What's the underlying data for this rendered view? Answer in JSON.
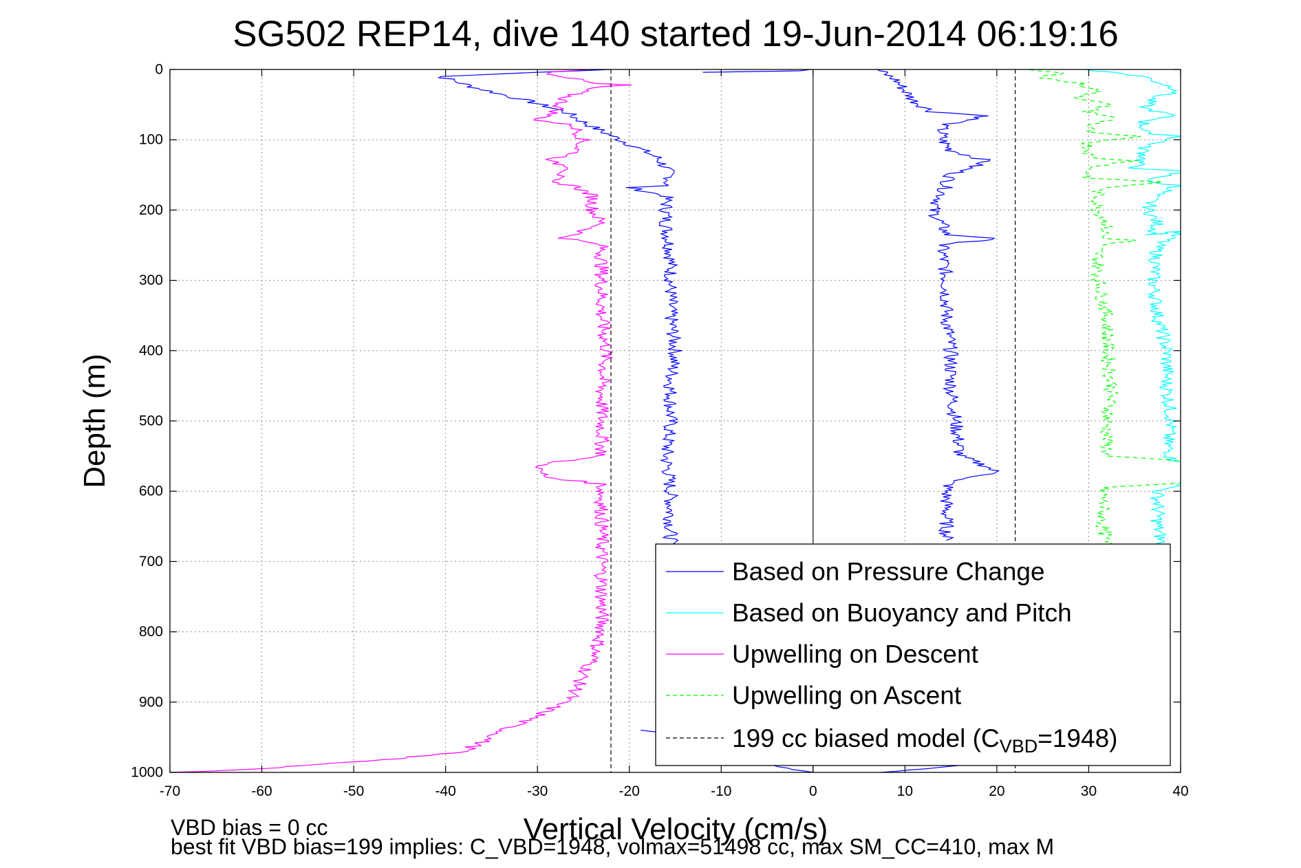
{
  "chart_data": {
    "type": "line",
    "title": "SG502 REP14, dive 140 started 19-Jun-2014 06:19:16",
    "xlabel": "Vertical Velocity (cm/s)",
    "ylabel": "Depth (m)",
    "xlim": [
      -70,
      40
    ],
    "ylim": [
      0,
      1000
    ],
    "y_reversed": true,
    "grid": true,
    "legend_position": "bottom-right",
    "x_ticks": [
      "-70",
      "-60",
      "-50",
      "-40",
      "-30",
      "-20",
      "-10",
      "0",
      "10",
      "20",
      "30",
      "40"
    ],
    "y_ticks": [
      "0",
      "100",
      "200",
      "300",
      "400",
      "500",
      "600",
      "700",
      "800",
      "900",
      "1000"
    ],
    "reference_lines_x": [
      -22,
      22
    ],
    "series": [
      {
        "name": "Based on Pressure Change",
        "color": "#0000ff",
        "style": "solid",
        "segments": [
          [
            [
              -22,
              0
            ],
            [
              -40.5,
              10
            ],
            [
              -37,
              25
            ],
            [
              -31,
              45
            ],
            [
              -27,
              60
            ],
            [
              -25,
              75
            ],
            [
              -23,
              88
            ],
            [
              -21,
              100
            ],
            [
              -19,
              112
            ],
            [
              -17,
              125
            ],
            [
              -16,
              140
            ],
            [
              -15.5,
              155
            ],
            [
              -16,
              165
            ],
            [
              -20,
              168
            ],
            [
              -16,
              180
            ],
            [
              -16,
              220
            ],
            [
              -15.5,
              260
            ],
            [
              -15.5,
              300
            ],
            [
              -15.5,
              350
            ],
            [
              -15,
              400
            ],
            [
              -15.5,
              450
            ],
            [
              -15.5,
              500
            ],
            [
              -16,
              550
            ],
            [
              -15.5,
              600
            ],
            [
              -15.5,
              650
            ],
            [
              -15.5,
              680
            ]
          ],
          [
            [
              -18,
              940
            ],
            [
              -16,
              945
            ],
            [
              -12,
              960
            ],
            [
              -8,
              975
            ],
            [
              -4,
              990
            ],
            [
              0,
              1000
            ]
          ],
          [
            [
              0,
              0
            ],
            [
              -2,
              2
            ],
            [
              -12,
              4
            ]
          ],
          [
            [
              7,
              0
            ],
            [
              9,
              15
            ],
            [
              10,
              30
            ],
            [
              11,
              45
            ],
            [
              13,
              60
            ],
            [
              19,
              66
            ],
            [
              14,
              80
            ],
            [
              14,
              100
            ],
            [
              15,
              115
            ],
            [
              19,
              130
            ],
            [
              15,
              150
            ],
            [
              14,
              180
            ],
            [
              13,
              200
            ],
            [
              14,
              220
            ],
            [
              14.5,
              235
            ],
            [
              20,
              240
            ],
            [
              14,
              250
            ],
            [
              14.5,
              300
            ],
            [
              14.5,
              350
            ],
            [
              15,
              400
            ],
            [
              15,
              450
            ],
            [
              15.5,
              500
            ],
            [
              16,
              550
            ],
            [
              19,
              565
            ],
            [
              20,
              575
            ],
            [
              15,
              585
            ],
            [
              14.5,
              600
            ],
            [
              14.5,
              650
            ],
            [
              14.5,
              670
            ]
          ],
          [
            [
              8,
              1000
            ],
            [
              12,
              995
            ],
            [
              16,
              990
            ]
          ]
        ]
      },
      {
        "name": "Based on Buoyancy and Pitch",
        "color": "#00ffff",
        "style": "solid",
        "segments": [
          [
            [
              30,
              0
            ],
            [
              36,
              10
            ],
            [
              38,
              20
            ],
            [
              40,
              30
            ],
            [
              37,
              40
            ],
            [
              36,
              55
            ],
            [
              39,
              65
            ],
            [
              36,
              75
            ],
            [
              36,
              90
            ],
            [
              40,
              95
            ],
            [
              36,
              110
            ],
            [
              36,
              125
            ],
            [
              35,
              140
            ],
            [
              40,
              145
            ],
            [
              36,
              160
            ],
            [
              40,
              165
            ],
            [
              37,
              180
            ],
            [
              36.5,
              200
            ],
            [
              37.5,
              220
            ],
            [
              37,
              235
            ],
            [
              40,
              230
            ],
            [
              37.5,
              250
            ],
            [
              37,
              300
            ],
            [
              37.5,
              350
            ],
            [
              38.5,
              400
            ],
            [
              38.5,
              450
            ],
            [
              39,
              500
            ],
            [
              38.5,
              530
            ],
            [
              39,
              555
            ],
            [
              40,
              558
            ]
          ],
          [
            [
              40,
              590
            ],
            [
              37.5,
              600
            ],
            [
              37.5,
              650
            ],
            [
              38,
              680
            ]
          ]
        ]
      },
      {
        "name": "Upwelling on Descent",
        "color": "#ff00ff",
        "style": "solid",
        "segments": [
          [
            [
              -25,
              0
            ],
            [
              -29,
              5
            ],
            [
              -27,
              10
            ],
            [
              -24,
              20
            ],
            [
              -20,
              22
            ],
            [
              -24,
              25
            ],
            [
              -27,
              40
            ],
            [
              -28,
              60
            ],
            [
              -30,
              72
            ],
            [
              -26,
              80
            ],
            [
              -25,
              100
            ],
            [
              -26,
              120
            ],
            [
              -29,
              130
            ],
            [
              -26,
              140
            ],
            [
              -29,
              160
            ],
            [
              -26,
              165
            ],
            [
              -24,
              180
            ],
            [
              -24,
              200
            ],
            [
              -23,
              220
            ],
            [
              -27,
              240
            ],
            [
              -23,
              250
            ],
            [
              -23,
              300
            ],
            [
              -23,
              350
            ],
            [
              -22.5,
              400
            ],
            [
              -23,
              450
            ],
            [
              -23,
              500
            ],
            [
              -23,
              550
            ],
            [
              -29,
              560
            ],
            [
              -30,
              570
            ],
            [
              -29,
              580
            ],
            [
              -23,
              590
            ],
            [
              -23,
              600
            ],
            [
              -23,
              650
            ],
            [
              -23,
              700
            ],
            [
              -23,
              750
            ],
            [
              -23,
              800
            ],
            [
              -24,
              840
            ],
            [
              -25,
              860
            ],
            [
              -26,
              890
            ],
            [
              -28,
              905
            ],
            [
              -30,
              920
            ],
            [
              -33,
              935
            ],
            [
              -35,
              950
            ],
            [
              -38,
              970
            ],
            [
              -45,
              980
            ],
            [
              -55,
              990
            ],
            [
              -60,
              995
            ],
            [
              -70,
              1000
            ]
          ]
        ]
      },
      {
        "name": "Upwelling on Ascent",
        "color": "#00ff00",
        "style": "dashed",
        "segments": [
          [
            [
              23,
              0
            ],
            [
              27,
              5
            ],
            [
              25,
              12
            ],
            [
              29,
              20
            ],
            [
              31,
              30
            ],
            [
              29,
              40
            ],
            [
              32,
              50
            ],
            [
              30,
              60
            ],
            [
              33,
              70
            ],
            [
              30,
              80
            ],
            [
              30,
              90
            ],
            [
              35,
              95
            ],
            [
              30,
              105
            ],
            [
              30,
              125
            ],
            [
              35,
              130
            ],
            [
              30,
              140
            ],
            [
              30,
              155
            ],
            [
              38,
              160
            ],
            [
              31,
              170
            ],
            [
              31,
              200
            ],
            [
              32,
              220
            ],
            [
              31.5,
              240
            ],
            [
              35,
              243
            ],
            [
              31,
              250
            ],
            [
              31,
              300
            ],
            [
              32,
              350
            ],
            [
              32,
              400
            ],
            [
              32.5,
              450
            ],
            [
              32,
              500
            ],
            [
              32,
              530
            ],
            [
              32,
              550
            ],
            [
              40,
              557
            ]
          ],
          [
            [
              40,
              588
            ],
            [
              31.5,
              595
            ],
            [
              31.5,
              650
            ],
            [
              32,
              680
            ]
          ],
          [
            [
              22,
              1000
            ],
            [
              30,
              1000
            ]
          ]
        ]
      },
      {
        "name": "199 cc biased model (CVBD=1948)",
        "color": "#000000",
        "style": "dashed",
        "segments": [
          [
            [
              -22,
              0
            ],
            [
              -22,
              1000
            ]
          ],
          [
            [
              22,
              0
            ],
            [
              22,
              1000
            ]
          ]
        ]
      }
    ],
    "legend": {
      "entries": [
        {
          "text": "Based on Pressure Change",
          "color": "#0000ff",
          "style": "solid"
        },
        {
          "text": "Based on Buoyancy and Pitch",
          "color": "#00ffff",
          "style": "solid"
        },
        {
          "text": "Upwelling on Descent",
          "color": "#ff00ff",
          "style": "solid"
        },
        {
          "text": "Upwelling on Ascent",
          "color": "#00ff00",
          "style": "dashed"
        }
      ],
      "model_entry": {
        "prefix": "199 cc biased model (C",
        "subscript": "VBD",
        "suffix": "=1948)",
        "color": "#000000",
        "style": "dashed"
      }
    },
    "footer_line1": "VBD bias = 0 cc",
    "footer_line2": "best fit VBD bias=199 implies: C_VBD=1948, volmax=51498 cc, max SM_CC=410, max M"
  }
}
